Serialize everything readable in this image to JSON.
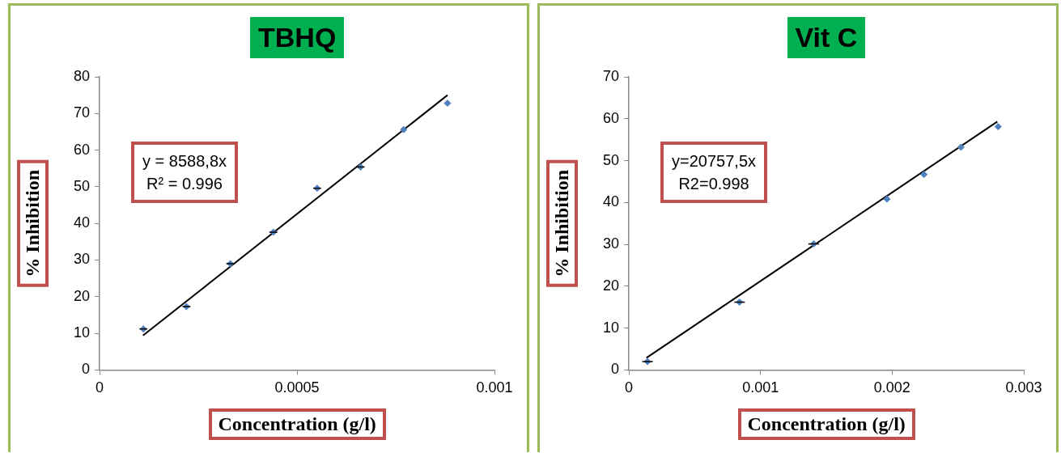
{
  "chart_data": [
    {
      "type": "scatter",
      "title": "TBHQ",
      "xlabel": "Concentration (g/l)",
      "ylabel": "% Inhibition",
      "annotations": [
        "y = 8588,8x\nR² = 0.996"
      ],
      "series": [
        {
          "type": "scatter",
          "color": "#4f81bd",
          "marker": "diamond",
          "x": [
            0.000111,
            0.00022,
            0.000331,
            0.00044,
            0.000551,
            0.000661,
            0.00077,
            0.000881
          ],
          "values": [
            11.2,
            17.3,
            29.0,
            37.6,
            49.6,
            55.4,
            65.6,
            72.8
          ],
          "xerrors": [
            1e-05,
            1e-05,
            1e-05,
            1e-05,
            1e-05,
            1e-05,
            null,
            null
          ]
        },
        {
          "type": "line",
          "color": "#000000",
          "marker": "none",
          "x": [
            0.00011,
            0.000881
          ],
          "values": [
            9.4,
            75.0
          ]
        }
      ],
      "xlim": [
        0,
        0.001
      ],
      "xticks": [
        0,
        0.0005,
        0.001
      ],
      "ylim": [
        0,
        80
      ],
      "yticks": [
        0,
        10,
        20,
        30,
        40,
        50,
        60,
        70,
        80
      ],
      "grid": false,
      "legend": false
    },
    {
      "type": "scatter",
      "title": "Vit C",
      "xlabel": "Concentration (g/l)",
      "ylabel": "% Inhibition",
      "annotations": [
        "y=20757,5x\nR2=0.998"
      ],
      "series": [
        {
          "type": "scatter",
          "color": "#4f81bd",
          "marker": "diamond",
          "x": [
            0.000142,
            0.000841,
            0.001404,
            0.001961,
            0.002242,
            0.002523,
            0.002805
          ],
          "values": [
            2.0,
            16.2,
            30.1,
            40.8,
            46.7,
            53.2,
            58.1
          ],
          "xerrors": [
            4e-05,
            4e-05,
            4e-05,
            null,
            null,
            null,
            null
          ]
        },
        {
          "type": "line",
          "color": "#000000",
          "marker": "none",
          "x": [
            0.000134,
            0.002799
          ],
          "values": [
            2.9,
            59.3
          ]
        }
      ],
      "xlim": [
        0,
        0.003
      ],
      "xticks": [
        0,
        0.001,
        0.002,
        0.003
      ],
      "ylim": [
        0,
        70
      ],
      "yticks": [
        0,
        10,
        20,
        30,
        40,
        50,
        60,
        70
      ],
      "grid": false,
      "legend": false
    }
  ]
}
